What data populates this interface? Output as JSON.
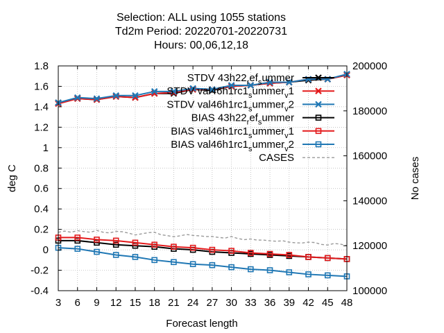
{
  "chart_data": {
    "type": "line",
    "title": [
      "Selection: ALL using  1055 stations",
      "Td2m   Period: 20220701-20220731",
      "Hours:  00,06,12,18"
    ],
    "xlabel": "Forecast length",
    "ylabel": "deg C",
    "y2label": "No cases",
    "x": [
      3,
      6,
      9,
      12,
      15,
      18,
      21,
      24,
      27,
      30,
      33,
      36,
      39,
      42,
      45,
      48
    ],
    "xlim": [
      3,
      48
    ],
    "ylim": [
      -0.4,
      1.8
    ],
    "y2lim": [
      100000,
      200000
    ],
    "xticks": [
      "3",
      "6",
      "9",
      "12",
      "15",
      "18",
      "21",
      "24",
      "27",
      "30",
      "33",
      "36",
      "39",
      "42",
      "45",
      "48"
    ],
    "yticks": [
      "-0.4",
      "-0.2",
      "0",
      "0.2",
      "0.4",
      "0.6",
      "0.8",
      "1",
      "1.2",
      "1.4",
      "1.6",
      "1.8"
    ],
    "y2ticks": [
      "100000",
      "120000",
      "140000",
      "160000",
      "180000",
      "200000"
    ],
    "grid": true,
    "legend_position": "top-right",
    "series": [
      {
        "name": "STDV 43h22_ref_summer",
        "axis": "y1",
        "color": "#000000",
        "marker": "cross",
        "values": [
          1.44,
          1.48,
          1.47,
          1.5,
          1.49,
          1.53,
          1.53,
          1.57,
          1.56,
          1.6,
          1.61,
          1.63,
          1.64,
          1.66,
          1.67,
          1.71
        ]
      },
      {
        "name": "STDV val46h1rc1_summer_v1",
        "axis": "y1",
        "color": "#e31a1c",
        "marker": "cross",
        "values": [
          1.43,
          1.48,
          1.47,
          1.5,
          1.49,
          1.53,
          1.54,
          1.57,
          1.57,
          1.6,
          1.61,
          1.63,
          1.64,
          1.67,
          1.67,
          1.71
        ]
      },
      {
        "name": "STDV val46h1rc1_summer_v2",
        "axis": "y1",
        "color": "#1f77b4",
        "marker": "cross",
        "values": [
          1.44,
          1.49,
          1.48,
          1.51,
          1.51,
          1.55,
          1.55,
          1.58,
          1.57,
          1.61,
          1.61,
          1.64,
          1.64,
          1.67,
          1.67,
          1.72
        ]
      },
      {
        "name": "BIAS 43h22_ref_summer",
        "axis": "y1",
        "color": "#000000",
        "marker": "square",
        "values": [
          0.09,
          0.09,
          0.07,
          0.05,
          0.04,
          0.03,
          0.01,
          0.0,
          -0.02,
          -0.03,
          -0.04,
          -0.05,
          -0.06,
          -0.07,
          -0.08,
          -0.09
        ]
      },
      {
        "name": "BIAS val46h1rc1_summer_v1",
        "axis": "y1",
        "color": "#e31a1c",
        "marker": "square",
        "values": [
          0.12,
          0.12,
          0.1,
          0.09,
          0.07,
          0.05,
          0.03,
          0.02,
          0.0,
          -0.01,
          -0.03,
          -0.04,
          -0.05,
          -0.07,
          -0.08,
          -0.09
        ]
      },
      {
        "name": "BIAS val46h1rc1_summer_v2",
        "axis": "y1",
        "color": "#1f77b4",
        "marker": "square",
        "values": [
          0.02,
          0.01,
          -0.02,
          -0.05,
          -0.07,
          -0.1,
          -0.12,
          -0.14,
          -0.15,
          -0.17,
          -0.19,
          -0.2,
          -0.22,
          -0.24,
          -0.25,
          -0.26
        ]
      },
      {
        "name": "CASES",
        "axis": "y2",
        "color": "#999999",
        "marker": "none",
        "dashed": true,
        "x": [
          3,
          4,
          5,
          6,
          7,
          8,
          9,
          10,
          11,
          12,
          13,
          14,
          15,
          16,
          17,
          18,
          19,
          20,
          21,
          22,
          23,
          24,
          25,
          26,
          27,
          28,
          29,
          30,
          31,
          32,
          33,
          34,
          35,
          36,
          37,
          38,
          39,
          40,
          41,
          42,
          43,
          44,
          45,
          46,
          47,
          48
        ],
        "values": [
          126000,
          126500,
          126000,
          126700,
          126300,
          126000,
          126800,
          126000,
          125700,
          126400,
          126200,
          125600,
          124800,
          125300,
          125800,
          126000,
          124900,
          124500,
          124000,
          124400,
          125000,
          124600,
          124400,
          124100,
          124100,
          123700,
          123400,
          124100,
          123200,
          122700,
          123000,
          122500,
          122500,
          122200,
          122000,
          122200,
          121600,
          121300,
          121200,
          121600,
          121400,
          120600,
          120300,
          121000,
          120700,
          120000
        ]
      }
    ],
    "legend": [
      {
        "label": "STDV 43h22",
        "sub1": "r",
        "mid1": "ef",
        "sub2": "s",
        "tail": "ummer",
        "color": "#000000",
        "marker": "cross"
      },
      {
        "label": "STDV val46h1rc1",
        "sub1": "s",
        "mid1": "ummer",
        "sub2": "v",
        "tail": "1",
        "color": "#e31a1c",
        "marker": "cross"
      },
      {
        "label": "STDV val46h1rc1",
        "sub1": "s",
        "mid1": "ummer",
        "sub2": "v",
        "tail": "2",
        "color": "#1f77b4",
        "marker": "cross"
      },
      {
        "label": "BIAS 43h22",
        "sub1": "r",
        "mid1": "ef",
        "sub2": "s",
        "tail": "ummer",
        "color": "#000000",
        "marker": "square"
      },
      {
        "label": "BIAS val46h1rc1",
        "sub1": "s",
        "mid1": "ummer",
        "sub2": "v",
        "tail": "1",
        "color": "#e31a1c",
        "marker": "square"
      },
      {
        "label": "BIAS val46h1rc1",
        "sub1": "s",
        "mid1": "ummer",
        "sub2": "v",
        "tail": "2",
        "color": "#1f77b4",
        "marker": "square"
      },
      {
        "label": "CASES",
        "sub1": "",
        "mid1": "",
        "sub2": "",
        "tail": "",
        "color": "#999999",
        "marker": "none",
        "dashed": true
      }
    ]
  }
}
